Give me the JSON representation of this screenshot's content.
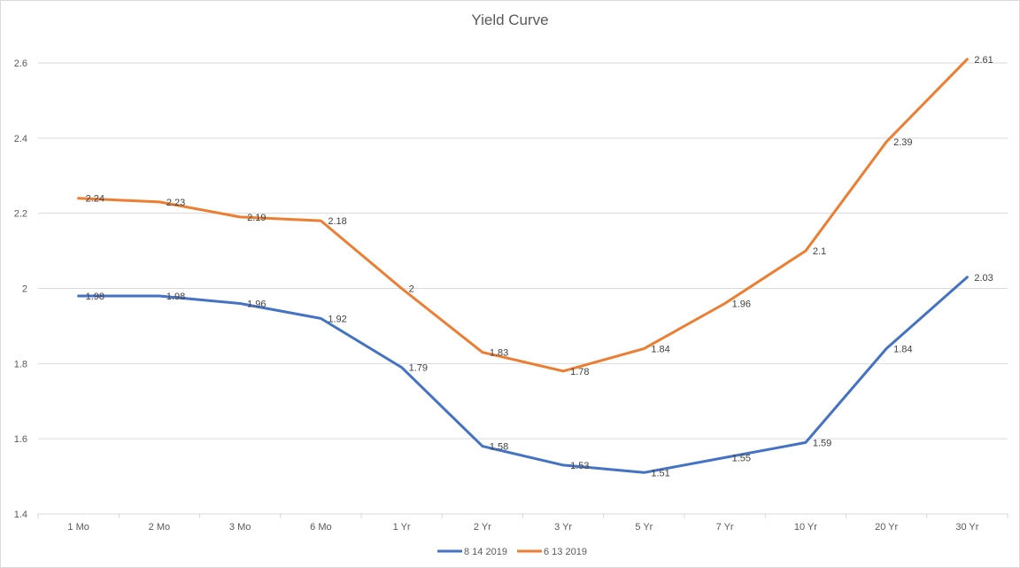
{
  "chart_data": {
    "type": "line",
    "title": "Yield Curve",
    "categories": [
      "1 Mo",
      "2 Mo",
      "3 Mo",
      "6 Mo",
      "1 Yr",
      "2 Yr",
      "3 Yr",
      "5 Yr",
      "7 Yr",
      "10 Yr",
      "20 Yr",
      "30 Yr"
    ],
    "series": [
      {
        "name": "8 14 2019",
        "color": "#4472c4",
        "values": [
          1.98,
          1.98,
          1.96,
          1.92,
          1.79,
          1.58,
          1.53,
          1.51,
          1.55,
          1.59,
          1.84,
          2.03
        ],
        "labels": [
          "1.98",
          "1.98",
          "1.96",
          "1.92",
          "1.79",
          "1.58",
          "1.53",
          "1.51",
          "1.55",
          "1.59",
          "1.84",
          "2.03"
        ]
      },
      {
        "name": "6 13 2019",
        "color": "#ed7d31",
        "values": [
          2.24,
          2.23,
          2.19,
          2.18,
          2.0,
          1.83,
          1.78,
          1.84,
          1.96,
          2.1,
          2.39,
          2.61
        ],
        "labels": [
          "2.24",
          "2.23",
          "2.19",
          "2.18",
          "2",
          "1.83",
          "1.78",
          "1.84",
          "1.96",
          "2.1",
          "2.39",
          "2.61"
        ]
      }
    ],
    "ylim": [
      1.4,
      2.6
    ],
    "yticks": [
      1.4,
      1.6,
      1.8,
      2.0,
      2.2,
      2.4,
      2.6
    ],
    "ytick_labels": [
      "1.4",
      "1.6",
      "1.8",
      "2",
      "2.2",
      "2.4",
      "2.6"
    ],
    "grid": true,
    "legend_position": "bottom",
    "xlabel": "",
    "ylabel": ""
  }
}
